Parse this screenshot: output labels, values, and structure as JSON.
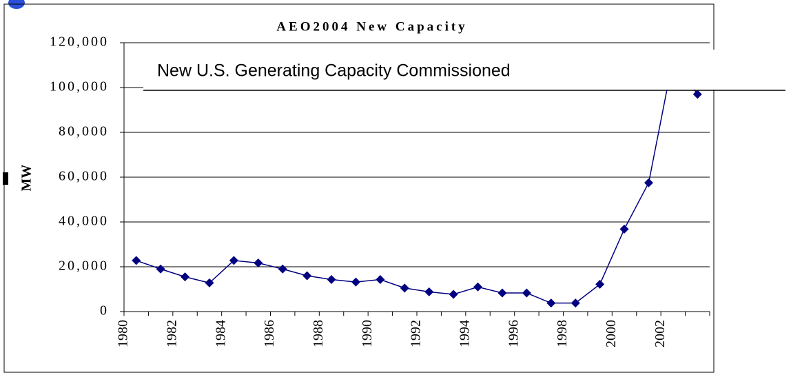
{
  "chart_data": {
    "type": "line",
    "title": "AEO2004 New Capacity",
    "ylabel": "MW",
    "annotation": "New U.S. Generating Capacity Commissioned",
    "categories": [
      "1980",
      null,
      "1982",
      null,
      "1984",
      null,
      "1986",
      null,
      "1988",
      null,
      "1990",
      null,
      "1992",
      null,
      "1994",
      null,
      "1996",
      null,
      "1998",
      null,
      "2000",
      null,
      "2002",
      null
    ],
    "series": [
      {
        "name": "New Capacity",
        "color": "#000080",
        "values": [
          22800,
          19000,
          15500,
          12800,
          22800,
          21700,
          19000,
          16000,
          14300,
          13200,
          14300,
          10500,
          8800,
          7700,
          11000,
          8300,
          8300,
          3800,
          3800,
          12200,
          36800,
          57500,
          113000,
          97000
        ]
      }
    ],
    "ylim": [
      0,
      120000
    ],
    "yticks": [
      {
        "value": 0,
        "label": "0"
      },
      {
        "value": 20000,
        "label": "20,000"
      },
      {
        "value": 40000,
        "label": "40,000"
      },
      {
        "value": 60000,
        "label": "60,000"
      },
      {
        "value": 80000,
        "label": "80,000"
      },
      {
        "value": 100000,
        "label": "100,000"
      },
      {
        "value": 120000,
        "label": "120,000"
      }
    ],
    "grid": true
  }
}
